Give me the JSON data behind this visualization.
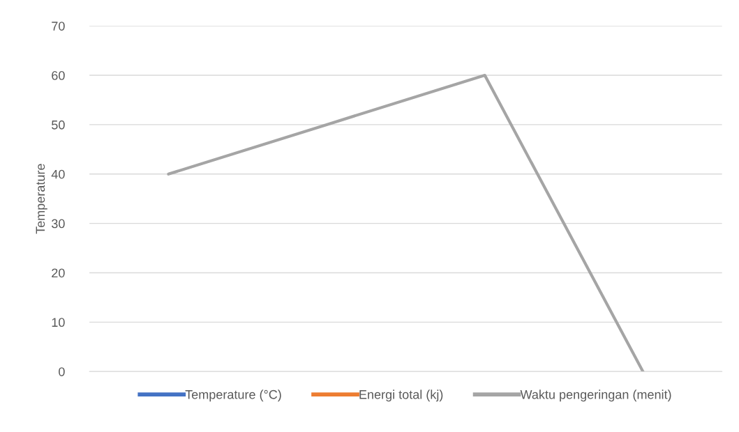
{
  "chart_data": {
    "type": "line",
    "ylabel": "Temperature",
    "categories": [
      null,
      null,
      null,
      null
    ],
    "series": [
      {
        "name": "Temperature (°C)",
        "color": "#4472c4",
        "values": [
          null,
          null,
          null,
          null
        ]
      },
      {
        "name": "Energi total (kj)",
        "color": "#ed7d31",
        "values": [
          null,
          null,
          null,
          null
        ]
      },
      {
        "name": "Waktu pengeringan (menit)",
        "color": "#a5a5a5",
        "values": [
          40,
          50,
          60,
          0
        ]
      }
    ],
    "ylim": [
      0,
      70
    ],
    "yticks": [
      0,
      10,
      20,
      30,
      40,
      50,
      60,
      70
    ],
    "grid": "y",
    "legend": "bottom",
    "marker": "none",
    "line_style": "solid"
  }
}
